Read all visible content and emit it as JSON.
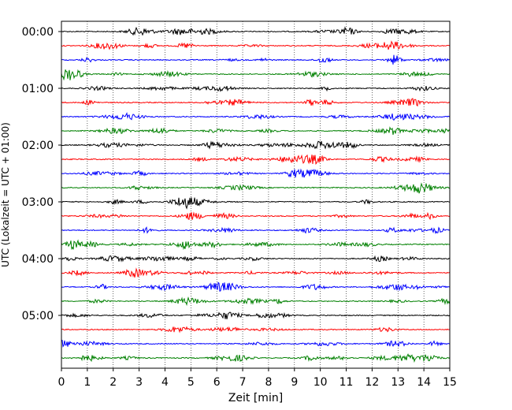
{
  "chart_data": {
    "type": "line",
    "title": "",
    "xlabel": "Zeit  [min]",
    "ylabel": "UTC (Lokalzeit = UTC + 01:00)",
    "xlim": [
      0,
      15
    ],
    "x_ticks": [
      0,
      1,
      2,
      3,
      4,
      5,
      6,
      7,
      8,
      9,
      10,
      11,
      12,
      13,
      14,
      15
    ],
    "x_grid": true,
    "grid_style": "dotted",
    "y_tick_labels": [
      "00:00",
      "01:00",
      "02:00",
      "03:00",
      "04:00",
      "05:00"
    ],
    "y_tick_row_index": [
      0,
      4,
      8,
      12,
      16,
      20
    ],
    "trace_count": 24,
    "trace_interval_min": 15,
    "trace_colors": [
      "#000000",
      "#ff0000",
      "#0000ff",
      "#008000"
    ]
  }
}
